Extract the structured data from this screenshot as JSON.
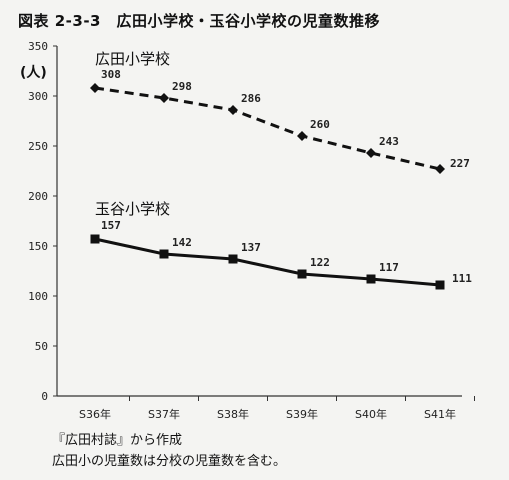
{
  "header": {
    "title": "図表 2-3-3　広田小学校・玉谷小学校の児童数推移"
  },
  "chart_data": {
    "type": "line",
    "title": "図表 2-3-3　広田小学校・玉谷小学校の児童数推移",
    "ylabel": "(人)",
    "xlabel": "",
    "categories": [
      "S36年",
      "S37年",
      "S38年",
      "S39年",
      "S40年",
      "S41年"
    ],
    "ylim": [
      0,
      350
    ],
    "yticks": [
      0,
      50,
      100,
      150,
      200,
      250,
      300,
      350
    ],
    "grid": false,
    "series": [
      {
        "name": "広田小学校",
        "values": [
          308,
          298,
          286,
          260,
          243,
          227
        ],
        "style": "dashed",
        "marker": "diamond",
        "color": "#111111"
      },
      {
        "name": "玉谷小学校",
        "values": [
          157,
          142,
          137,
          122,
          117,
          111
        ],
        "style": "solid",
        "marker": "square",
        "color": "#111111"
      }
    ]
  },
  "notes": {
    "line1": "『広田村誌』から作成",
    "line2": "広田小の児童数は分校の児童数を含む。"
  }
}
